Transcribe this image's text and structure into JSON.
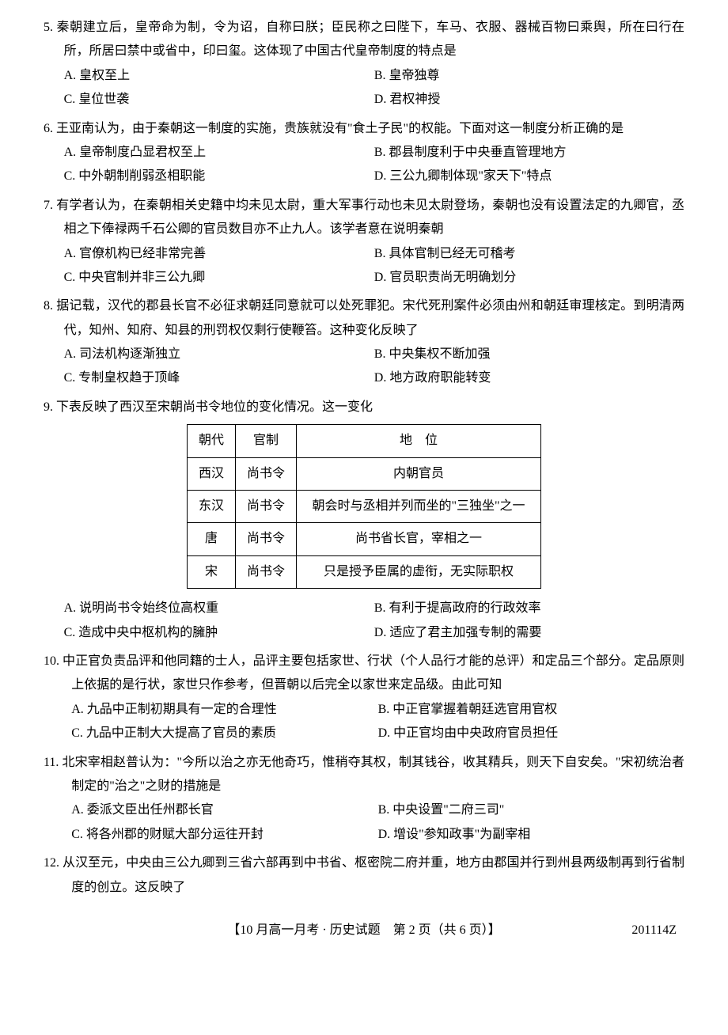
{
  "questions": [
    {
      "num": "5.",
      "stem": "秦朝建立后，皇帝命为制，令为诏，自称曰朕；臣民称之曰陛下，车马、衣服、器械百物曰乘舆，所在曰行在所，所居曰禁中或省中，印曰玺。这体现了中国古代皇帝制度的特点是",
      "options": [
        "A. 皇权至上",
        "B. 皇帝独尊",
        "C. 皇位世袭",
        "D. 君权神授"
      ]
    },
    {
      "num": "6.",
      "stem": "王亚南认为，由于秦朝这一制度的实施，贵族就没有\"食土子民\"的权能。下面对这一制度分析正确的是",
      "options": [
        "A. 皇帝制度凸显君权至上",
        "B. 郡县制度利于中央垂直管理地方",
        "C. 中外朝制削弱丞相职能",
        "D. 三公九卿制体现\"家天下\"特点"
      ]
    },
    {
      "num": "7.",
      "stem": "有学者认为，在秦朝相关史籍中均未见太尉，重大军事行动也未见太尉登场，秦朝也没有设置法定的九卿官，丞相之下俸禄两千石公卿的官员数目亦不止九人。该学者意在说明秦朝",
      "options": [
        "A. 官僚机构已经非常完善",
        "B. 具体官制已经无可稽考",
        "C. 中央官制并非三公九卿",
        "D. 官员职责尚无明确划分"
      ]
    },
    {
      "num": "8.",
      "stem": "据记载，汉代的郡县长官不必征求朝廷同意就可以处死罪犯。宋代死刑案件必须由州和朝廷审理核定。到明清两代，知州、知府、知县的刑罚权仅剩行使鞭笞。这种变化反映了",
      "options": [
        "A. 司法机构逐渐独立",
        "B. 中央集权不断加强",
        "C. 专制皇权趋于顶峰",
        "D. 地方政府职能转变"
      ]
    },
    {
      "num": "9.",
      "stem": "下表反映了西汉至宋朝尚书令地位的变化情况。这一变化",
      "table": {
        "headers": [
          "朝代",
          "官制",
          "地　位"
        ],
        "rows": [
          [
            "西汉",
            "尚书令",
            "内朝官员"
          ],
          [
            "东汉",
            "尚书令",
            "朝会时与丞相并列而坐的\"三独坐\"之一"
          ],
          [
            "唐",
            "尚书令",
            "尚书省长官，宰相之一"
          ],
          [
            "宋",
            "尚书令",
            "只是授予臣属的虚衔，无实际职权"
          ]
        ]
      },
      "options": [
        "A. 说明尚书令始终位高权重",
        "B. 有利于提高政府的行政效率",
        "C. 造成中央中枢机构的臃肿",
        "D. 适应了君主加强专制的需要"
      ]
    },
    {
      "num": "10.",
      "stem": "中正官负责品评和他同籍的士人，品评主要包括家世、行状（个人品行才能的总评）和定品三个部分。定品原则上依据的是行状，家世只作参考，但晋朝以后完全以家世来定品级。由此可知",
      "options": [
        "A. 九品中正制初期具有一定的合理性",
        "B. 中正官掌握着朝廷选官用官权",
        "C. 九品中正制大大提高了官员的素质",
        "D. 中正官均由中央政府官员担任"
      ]
    },
    {
      "num": "11.",
      "stem": "北宋宰相赵普认为：\"今所以治之亦无他奇巧，惟稍夺其权，制其钱谷，收其精兵，则天下自安矣。\"宋初统治者制定的\"治之\"之财的措施是",
      "options": [
        "A. 委派文臣出任州郡长官",
        "B. 中央设置\"二府三司\"",
        "C. 将各州郡的财赋大部分运往开封",
        "D. 增设\"参知政事\"为副宰相"
      ]
    },
    {
      "num": "12.",
      "stem": "从汉至元，中央由三公九卿到三省六部再到中书省、枢密院二府并重，地方由郡国并行到州县两级制再到行省制度的创立。这反映了",
      "options": []
    }
  ],
  "footer": {
    "center": "【10 月高一月考 · 历史试题　第 2 页（共 6 页）】",
    "right": "201114Z"
  }
}
